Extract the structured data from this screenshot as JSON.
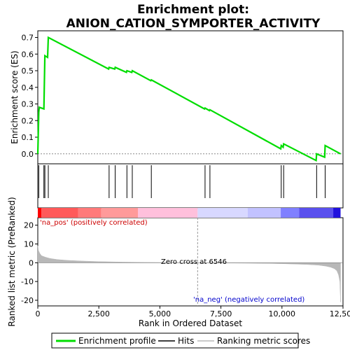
{
  "chart_data": [
    {
      "type": "line",
      "title_line1": "Enrichment plot:",
      "title_line2": "ANION_CATION_SYMPORTER_ACTIVITY",
      "ylabel": "Enrichment score (ES)",
      "xlim": [
        0,
        12500
      ],
      "ylim": [
        -0.06,
        0.74
      ],
      "y_ticks": [
        0.0,
        0.1,
        0.2,
        0.3,
        0.4,
        0.5,
        0.6,
        0.7
      ],
      "y_tick_labels": [
        "0.0",
        "0.1",
        "0.2",
        "0.3",
        "0.4",
        "0.5",
        "0.6",
        "0.7"
      ],
      "grid": false,
      "series": [
        {
          "name": "Enrichment profile",
          "color": "#00dd00",
          "x": [
            0,
            40,
            60,
            250,
            270,
            290,
            400,
            430,
            2900,
            2920,
            3150,
            3170,
            3630,
            3650,
            3850,
            3870,
            4630,
            4650,
            6830,
            6850,
            7030,
            7050,
            9950,
            9970,
            10050,
            10070,
            11400,
            11420,
            11750,
            11770,
            12400
          ],
          "y": [
            0.0,
            0.25,
            0.28,
            0.27,
            0.43,
            0.59,
            0.58,
            0.7,
            0.51,
            0.52,
            0.51,
            0.52,
            0.49,
            0.5,
            0.49,
            0.5,
            0.44,
            0.445,
            0.27,
            0.275,
            0.26,
            0.265,
            0.03,
            0.05,
            0.04,
            0.06,
            -0.04,
            0.0,
            -0.02,
            0.05,
            0.0
          ]
        }
      ]
    },
    {
      "type": "hits",
      "name": "Hits",
      "xlim": [
        0,
        12500
      ],
      "hit_positions": [
        40,
        250,
        290,
        430,
        2920,
        3170,
        3650,
        3870,
        4650,
        6850,
        7050,
        9970,
        10070,
        11420,
        11770
      ]
    },
    {
      "type": "heatmap",
      "name": "Ranking metric color bar",
      "xlim": [
        0,
        12500
      ],
      "segments": [
        {
          "x0": 0,
          "x1": 150,
          "color": "#ff0000"
        },
        {
          "x0": 150,
          "x1": 1650,
          "color": "#ff5a5a"
        },
        {
          "x0": 1650,
          "x1": 2600,
          "color": "#ff7a7a"
        },
        {
          "x0": 2600,
          "x1": 4100,
          "color": "#ff9a9a"
        },
        {
          "x0": 4100,
          "x1": 6546,
          "color": "#ffc0dc"
        },
        {
          "x0": 6546,
          "x1": 8600,
          "color": "#d8d8ff"
        },
        {
          "x0": 8600,
          "x1": 9950,
          "color": "#c2c2ff"
        },
        {
          "x0": 9950,
          "x1": 10700,
          "color": "#8080ff"
        },
        {
          "x0": 10700,
          "x1": 12100,
          "color": "#5a50ee"
        },
        {
          "x0": 12100,
          "x1": 12400,
          "color": "#2010dd"
        }
      ]
    },
    {
      "type": "area",
      "xlabel": "Rank in Ordered Dataset",
      "ylabel": "Ranked list metric (PreRanked)",
      "xlim": [
        0,
        12500
      ],
      "ylim": [
        -23,
        24
      ],
      "x_ticks": [
        0,
        2500,
        5000,
        7500,
        10000,
        12500
      ],
      "x_tick_labels": [
        "0",
        "2,500",
        "5,000",
        "7,500",
        "10,000",
        "12,500"
      ],
      "y_ticks": [
        -20,
        -10,
        0,
        10,
        20
      ],
      "y_tick_labels": [
        "-20",
        "-10",
        "0",
        "10",
        "20"
      ],
      "zero_cross": 6546,
      "x": [
        0,
        30,
        80,
        150,
        300,
        500,
        800,
        1200,
        1800,
        2500,
        3500,
        4500,
        5500,
        6546,
        7500,
        8500,
        9500,
        10000,
        10500,
        11000,
        11500,
        11800,
        12000,
        12150,
        12250,
        12320,
        12370,
        12400
      ],
      "values": [
        9,
        6.5,
        5,
        3.8,
        3,
        2.3,
        1.7,
        1.3,
        0.9,
        0.6,
        0.35,
        0.2,
        0.1,
        0.0,
        -0.1,
        -0.2,
        -0.35,
        -0.5,
        -0.7,
        -0.9,
        -1.3,
        -1.8,
        -2.4,
        -3.2,
        -4.3,
        -6.5,
        -10,
        -21
      ],
      "color": "#b8b8b8"
    }
  ],
  "annotations": {
    "pos_label": "'na_pos' (positively correlated)",
    "neg_label": "'na_neg' (negatively correlated)",
    "zero_label": "Zero cross at 6546"
  },
  "legend": {
    "items": [
      {
        "label": "Enrichment profile",
        "color": "#00dd00"
      },
      {
        "label": "Hits",
        "color": "#000000"
      },
      {
        "label": "Ranking metric scores",
        "color": "#b8b8b8"
      }
    ]
  }
}
